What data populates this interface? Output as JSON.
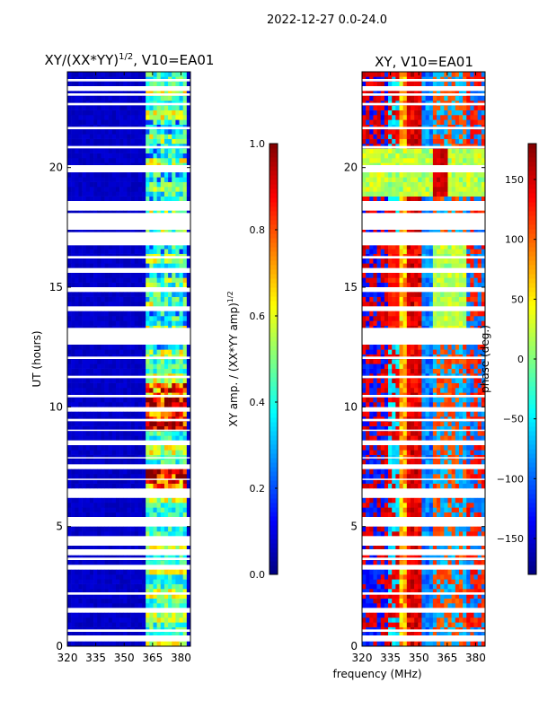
{
  "suptitle": "2022-12-27 0.0-24.0",
  "chart_data": [
    {
      "type": "heatmap",
      "title_main": "XY/(XX*YY)",
      "title_sup": "1/2",
      "title_rest": ", V10=EA01",
      "xlabel": "",
      "ylabel": "UT (hours)",
      "xlim": [
        320,
        385
      ],
      "ylim": [
        0,
        24
      ],
      "xticks": [
        "320",
        "335",
        "350",
        "365",
        "380"
      ],
      "xtick_values": [
        320,
        335,
        350,
        365,
        380
      ],
      "yticks": [
        "0",
        "5",
        "10",
        "15",
        "20"
      ],
      "ytick_values": [
        0,
        5,
        10,
        15,
        20
      ],
      "colorbar": {
        "label_main": "XY amp. / (XX*YY amp)",
        "label_sup": "1/2",
        "range": [
          0.0,
          1.0
        ],
        "ticks": [
          "0.0",
          "0.2",
          "0.4",
          "0.6",
          "0.8",
          "1.0"
        ],
        "tick_values": [
          0.0,
          0.2,
          0.4,
          0.6,
          0.8,
          1.0
        ],
        "colormap": "jet"
      },
      "bright_band_mhz": [
        362,
        383
      ],
      "background_value": 0.05
    },
    {
      "type": "heatmap",
      "title": "XY, V10=EA01",
      "xlabel": "frequency (MHz)",
      "ylabel": "",
      "xlim": [
        320,
        385
      ],
      "ylim": [
        0,
        24
      ],
      "xticks": [
        "320",
        "335",
        "350",
        "365",
        "380"
      ],
      "xtick_values": [
        320,
        335,
        350,
        365,
        380
      ],
      "yticks": [
        "0",
        "5",
        "10",
        "15",
        "20"
      ],
      "ytick_values": [
        0,
        5,
        10,
        15,
        20
      ],
      "colorbar": {
        "label": "phase (deg.)",
        "range": [
          -180,
          180
        ],
        "ticks": [
          "−150",
          "−100",
          "−50",
          "0",
          "50",
          "100",
          "150"
        ],
        "tick_values": [
          -150,
          -100,
          -50,
          0,
          50,
          100,
          150
        ],
        "colormap": "jet"
      }
    }
  ],
  "flagged_hours": [
    [
      0.3,
      0.45
    ],
    [
      0.6,
      0.7
    ],
    [
      1.5,
      1.6
    ],
    [
      2.15,
      2.25
    ],
    [
      3.3,
      3.4
    ],
    [
      3.6,
      3.7
    ],
    [
      3.9,
      4.05
    ],
    [
      4.2,
      4.6
    ],
    [
      5.1,
      5.2
    ],
    [
      5.3,
      5.4
    ],
    [
      6.2,
      6.55
    ],
    [
      6.95,
      7.0
    ],
    [
      7.5,
      7.6
    ],
    [
      7.85,
      7.9
    ],
    [
      8.5,
      8.6
    ],
    [
      9.0,
      9.05
    ],
    [
      9.4,
      9.5
    ],
    [
      9.9,
      9.95
    ],
    [
      10.4,
      10.5
    ],
    [
      11.2,
      11.3
    ],
    [
      12.0,
      12.1
    ],
    [
      12.7,
      12.8
    ],
    [
      12.9,
      13.0
    ],
    [
      13.1,
      13.3
    ],
    [
      14.1,
      14.2
    ],
    [
      14.9,
      15.0
    ],
    [
      15.7,
      15.8
    ],
    [
      16.2,
      16.3
    ],
    [
      16.75,
      17.3
    ],
    [
      17.5,
      17.6
    ],
    [
      17.7,
      18.1
    ],
    [
      18.3,
      18.4
    ],
    [
      18.5,
      18.6
    ],
    [
      19.9,
      20.1
    ],
    [
      20.8,
      20.9
    ],
    [
      21.6,
      21.7
    ],
    [
      22.6,
      22.7
    ],
    [
      23.0,
      23.1
    ],
    [
      23.3,
      23.4
    ],
    [
      23.6,
      23.7
    ]
  ]
}
